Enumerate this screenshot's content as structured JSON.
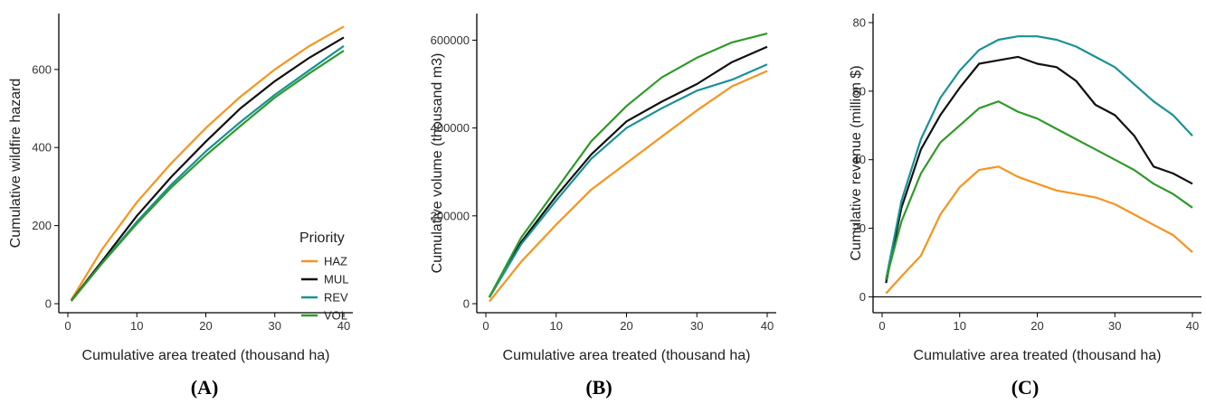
{
  "colors": {
    "HAZ": "#F7941D",
    "MUL": "#111111",
    "REV": "#1A9196",
    "VOL": "#2F9A2A"
  },
  "legend": {
    "title": "Priority",
    "entries": [
      "HAZ",
      "MUL",
      "REV",
      "VOL"
    ]
  },
  "chart_data": [
    {
      "type": "line",
      "panel_label": "A",
      "xlabel": "Cumulative area treated (thousand ha)",
      "ylabel": "Cumulative wildfire hazard",
      "xlim": [
        0,
        40
      ],
      "ylim": [
        0,
        720
      ],
      "xticks": [
        0,
        10,
        20,
        30,
        40
      ],
      "yticks": [
        0,
        200,
        400,
        600
      ],
      "ytick_labels": [
        "0",
        "200",
        "400",
        "600"
      ],
      "x": [
        0.5,
        5,
        10,
        15,
        20,
        25,
        30,
        35,
        40
      ],
      "series": [
        {
          "name": "HAZ",
          "values": [
            10,
            140,
            260,
            360,
            450,
            530,
            600,
            660,
            710
          ]
        },
        {
          "name": "MUL",
          "values": [
            8,
            110,
            225,
            325,
            415,
            500,
            570,
            630,
            682
          ]
        },
        {
          "name": "REV",
          "values": [
            7,
            105,
            210,
            305,
            390,
            465,
            535,
            598,
            660
          ]
        },
        {
          "name": "VOL",
          "values": [
            7,
            104,
            205,
            298,
            380,
            455,
            528,
            590,
            648
          ]
        }
      ]
    },
    {
      "type": "line",
      "panel_label": "B",
      "xlabel": "Cumulative area treated (thousand ha)",
      "ylabel": "Cumulative volume (thousand m3)",
      "xlim": [
        0,
        40
      ],
      "ylim": [
        0,
        640000
      ],
      "xticks": [
        0,
        10,
        20,
        30,
        40
      ],
      "yticks": [
        0,
        200000,
        400000,
        600000
      ],
      "ytick_labels": [
        "0",
        "200000",
        "400000",
        "600000"
      ],
      "x": [
        0.5,
        5,
        10,
        15,
        20,
        25,
        30,
        35,
        40
      ],
      "series": [
        {
          "name": "HAZ",
          "values": [
            5000,
            95000,
            180000,
            260000,
            320000,
            380000,
            440000,
            495000,
            530000
          ]
        },
        {
          "name": "MUL",
          "values": [
            15000,
            140000,
            245000,
            340000,
            415000,
            460000,
            500000,
            550000,
            585000
          ]
        },
        {
          "name": "REV",
          "values": [
            14000,
            135000,
            235000,
            330000,
            400000,
            445000,
            485000,
            510000,
            545000
          ]
        },
        {
          "name": "VOL",
          "values": [
            15000,
            150000,
            260000,
            370000,
            450000,
            515000,
            560000,
            595000,
            615000
          ]
        }
      ]
    },
    {
      "type": "line",
      "panel_label": "C",
      "xlabel": "Cumulative area treated (thousand ha)",
      "ylabel": "Cumulative revenue (million $)",
      "xlim": [
        0,
        40
      ],
      "ylim": [
        -2,
        80
      ],
      "xticks": [
        0,
        10,
        20,
        30,
        40
      ],
      "yticks": [
        0,
        20,
        40,
        60,
        80
      ],
      "ytick_labels": [
        "0",
        "20",
        "40",
        "60",
        "80"
      ],
      "x": [
        0.5,
        2.5,
        5,
        7.5,
        10,
        12.5,
        15,
        17.5,
        20,
        22.5,
        25,
        27.5,
        30,
        32.5,
        35,
        37.5,
        40
      ],
      "series": [
        {
          "name": "HAZ",
          "values": [
            1,
            6,
            12,
            24,
            32,
            37,
            38,
            35,
            33,
            31,
            30,
            29,
            27,
            24,
            21,
            18,
            13
          ]
        },
        {
          "name": "MUL",
          "values": [
            4,
            26,
            43,
            53,
            61,
            68,
            69,
            70,
            68,
            67,
            63,
            56,
            53,
            47,
            38,
            36,
            33
          ]
        },
        {
          "name": "REV",
          "values": [
            5,
            28,
            46,
            58,
            66,
            72,
            75,
            76,
            76,
            75,
            73,
            70,
            67,
            62,
            57,
            53,
            47
          ]
        },
        {
          "name": "VOL",
          "values": [
            5,
            22,
            36,
            45,
            50,
            55,
            57,
            54,
            52,
            49,
            46,
            43,
            40,
            37,
            33,
            30,
            26
          ]
        }
      ]
    }
  ]
}
